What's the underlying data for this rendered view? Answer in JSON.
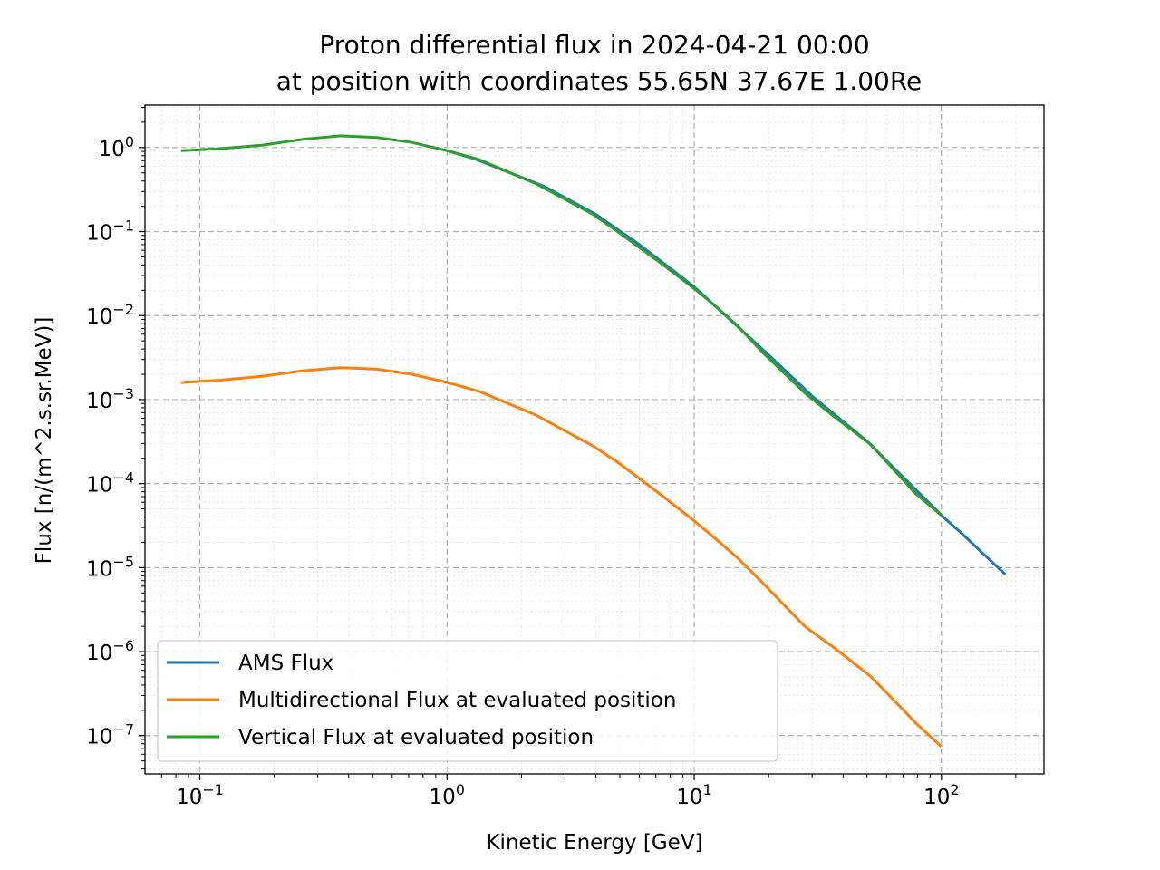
{
  "chart_data": {
    "type": "line",
    "title_line1": "Proton differential flux in 2024-04-21 00:00",
    "title_line2": "at position with coordinates 55.65N 37.67E 1.00Re",
    "xlabel": "Kinetic Energy [GeV]",
    "ylabel": "Flux [n/(m^2.s.sr.MeV)]",
    "xscale": "log",
    "yscale": "log",
    "xlim": [
      0.06,
      260
    ],
    "ylim": [
      3.5e-08,
      3.2
    ],
    "grid": true,
    "legend_position": "lower-left",
    "x_ticks": [
      {
        "value": 0.1,
        "base": "10",
        "exp": "−1"
      },
      {
        "value": 1,
        "base": "10",
        "exp": "0"
      },
      {
        "value": 10,
        "base": "10",
        "exp": "1"
      },
      {
        "value": 100,
        "base": "10",
        "exp": "2"
      }
    ],
    "y_ticks": [
      {
        "value": 1,
        "base": "10",
        "exp": "0"
      },
      {
        "value": 0.1,
        "base": "10",
        "exp": "−1"
      },
      {
        "value": 0.01,
        "base": "10",
        "exp": "−2"
      },
      {
        "value": 0.001,
        "base": "10",
        "exp": "−3"
      },
      {
        "value": 0.0001,
        "base": "10",
        "exp": "−4"
      },
      {
        "value": 1e-05,
        "base": "10",
        "exp": "−5"
      },
      {
        "value": 1e-06,
        "base": "10",
        "exp": "−6"
      },
      {
        "value": 1e-07,
        "base": "10",
        "exp": "−7"
      }
    ],
    "series": [
      {
        "name": "AMS Flux",
        "color": "#1f77b4",
        "x": [
          1.0,
          1.3,
          1.8,
          2.5,
          4.0,
          6.0,
          10,
          20,
          30,
          50,
          100,
          120,
          150,
          180
        ],
        "y": [
          0.92,
          0.73,
          0.5,
          0.34,
          0.16,
          0.07,
          0.022,
          0.0034,
          0.0011,
          0.00032,
          4.2e-05,
          2.6e-05,
          1.4e-05,
          8.5e-06
        ]
      },
      {
        "name": "Multidirectional Flux at evaluated position",
        "color": "#ff7f0e",
        "x": [
          0.085,
          0.12,
          0.18,
          0.26,
          0.37,
          0.52,
          0.72,
          1.0,
          1.35,
          2.3,
          3.9,
          4.9,
          7.5,
          10,
          12,
          15,
          19,
          28,
          37,
          52,
          63,
          79,
          99
        ],
        "y": [
          0.0016,
          0.0017,
          0.0019,
          0.0022,
          0.0024,
          0.0023,
          0.002,
          0.0016,
          0.00125,
          0.00065,
          0.00028,
          0.00018,
          7e-05,
          3.6e-05,
          2.3e-05,
          1.3e-05,
          6.5e-06,
          2e-06,
          1.1e-06,
          5e-07,
          2.8e-07,
          1.4e-07,
          7.6e-08
        ]
      },
      {
        "name": "Vertical Flux at evaluated position",
        "color": "#2ca02c",
        "x": [
          0.085,
          0.12,
          0.18,
          0.26,
          0.37,
          0.52,
          0.72,
          1.0,
          1.35,
          2.3,
          3.9,
          4.9,
          7.5,
          10,
          12,
          15,
          19,
          28,
          37,
          52,
          63,
          79,
          99
        ],
        "y": [
          0.92,
          0.97,
          1.07,
          1.25,
          1.38,
          1.32,
          1.15,
          0.92,
          0.72,
          0.37,
          0.16,
          0.1,
          0.04,
          0.021,
          0.0135,
          0.0075,
          0.0036,
          0.0012,
          0.00062,
          0.00029,
          0.000155,
          7.5e-05,
          4.3e-05
        ]
      }
    ]
  }
}
